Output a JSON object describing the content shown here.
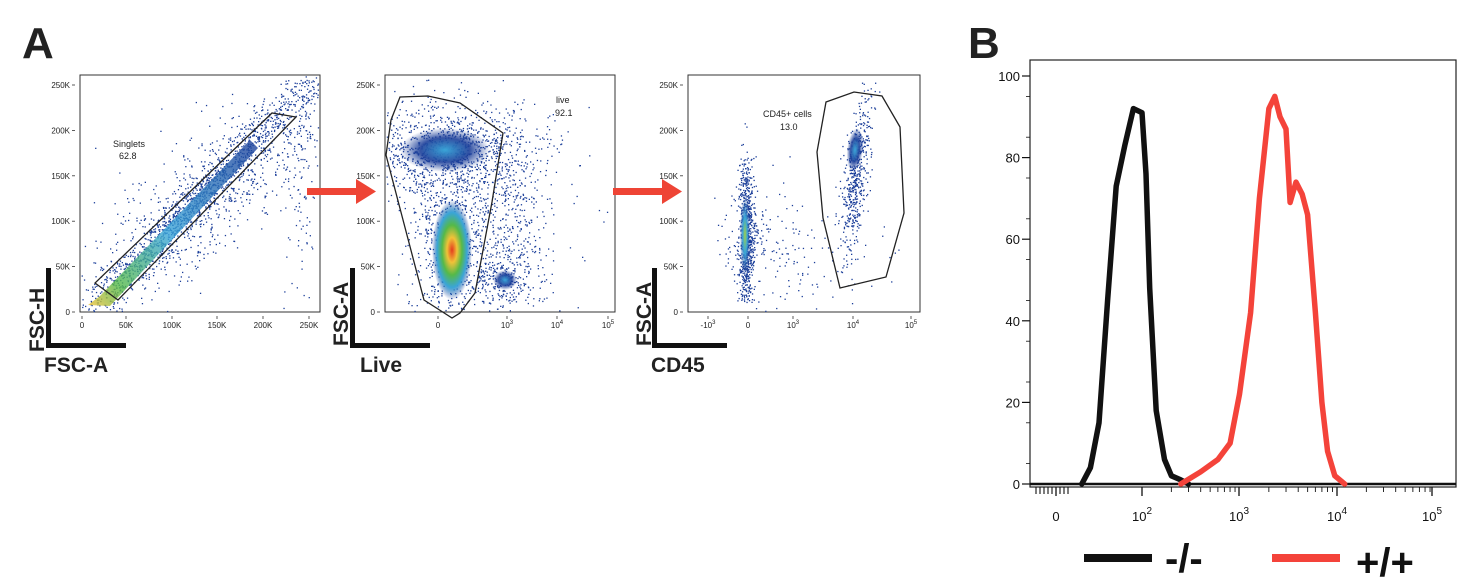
{
  "panels": {
    "A": {
      "label": "A"
    },
    "B": {
      "label": "B"
    }
  },
  "colors": {
    "arrow": "#ee4435",
    "knockout": "#111111",
    "wildtype": "#f4433a",
    "density_low": "#1c3f9a",
    "density_mid": "#3aa5d8",
    "density_high": "#55b948",
    "density_peak": "#e53a1e"
  },
  "chart_data": [
    {
      "type": "scatter",
      "panel": "A",
      "xlabel": "FSC-A",
      "ylabel": "FSC-H",
      "x_ticks": [
        "0",
        "50K",
        "100K",
        "150K",
        "200K",
        "250K"
      ],
      "y_ticks": [
        "0",
        "50K",
        "100K",
        "150K",
        "200K",
        "250K"
      ],
      "xlim": [
        0,
        262144
      ],
      "ylim": [
        0,
        262144
      ],
      "gate": {
        "name": "Singlets",
        "value": "62.8"
      }
    },
    {
      "type": "scatter",
      "panel": "A",
      "xlabel": "Live",
      "ylabel": "FSC-A",
      "x_ticks": [
        "0",
        "10^3",
        "10^4",
        "10^5"
      ],
      "y_ticks": [
        "0",
        "50K",
        "100K",
        "150K",
        "200K",
        "250K"
      ],
      "x_scale": "biexponential",
      "ylim": [
        0,
        262144
      ],
      "gate": {
        "name": "live",
        "value": "92.1"
      }
    },
    {
      "type": "scatter",
      "panel": "A",
      "xlabel": "CD45",
      "ylabel": "FSC-A",
      "x_ticks": [
        "-10^3",
        "0",
        "10^3",
        "10^4",
        "10^5"
      ],
      "y_ticks": [
        "0",
        "50K",
        "100K",
        "150K",
        "200K",
        "250K"
      ],
      "x_scale": "biexponential",
      "ylim": [
        0,
        262144
      ],
      "gate": {
        "name": "CD45+ cells",
        "value": "13.0"
      }
    },
    {
      "type": "line",
      "panel": "B",
      "x_scale": "biexponential",
      "x_ticks": [
        "0",
        "10^2",
        "10^3",
        "10^4",
        "10^5"
      ],
      "y_ticks": [
        "0",
        "20",
        "40",
        "60",
        "80",
        "100"
      ],
      "ylim": [
        0,
        100
      ],
      "grid": false,
      "legend_position": "bottom",
      "series": [
        {
          "name": "-/-",
          "x": [
            30,
            40,
            50,
            60,
            70,
            80,
            90,
            100,
            110,
            120,
            140,
            170,
            200,
            250,
            300
          ],
          "y": [
            0,
            4,
            15,
            45,
            73,
            83,
            92,
            91,
            76,
            48,
            18,
            6,
            2,
            1,
            0
          ]
        },
        {
          "name": "+/+",
          "x": [
            250,
            400,
            600,
            800,
            1000,
            1300,
            1600,
            2000,
            2300,
            2600,
            3000,
            3300,
            3800,
            4400,
            5000,
            6000,
            7000,
            8000,
            9500,
            12000
          ],
          "y": [
            0,
            3,
            6,
            10,
            22,
            42,
            70,
            92,
            95,
            90,
            87,
            69,
            74,
            71,
            66,
            42,
            20,
            8,
            2,
            0
          ]
        }
      ]
    }
  ]
}
